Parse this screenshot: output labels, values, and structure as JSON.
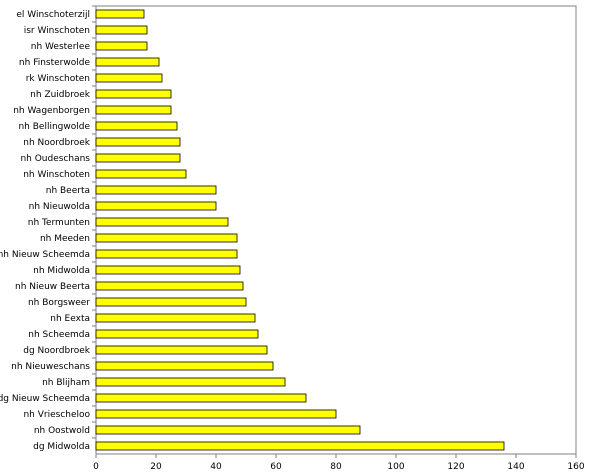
{
  "chart_data": {
    "type": "bar",
    "orientation": "horizontal",
    "categories": [
      "el Winschoterzijl",
      "isr Winschoten",
      "nh Westerlee",
      "nh Finsterwolde",
      "rk Winschoten",
      "nh Zuidbroek",
      "nh Wagenborgen",
      "nh Bellingwolde",
      "nh Noordbroek",
      "nh Oudeschans",
      "nh Winschoten",
      "nh Beerta",
      "nh Nieuwolda",
      "nh Termunten",
      "nh Meeden",
      "nh Nieuw Scheemda",
      "nh Midwolda",
      "nh Nieuw Beerta",
      "nh Borgsweer",
      "nh Eexta",
      "nh Scheemda",
      "dg Noordbroek",
      "nh Nieuweschans",
      "nh Blijham",
      "dg Nieuw Scheemda",
      "nh Vriescheloo",
      "nh Oostwold",
      "dg Midwolda"
    ],
    "values": [
      16,
      17,
      17,
      21,
      22,
      25,
      25,
      27,
      28,
      28,
      30,
      40,
      40,
      44,
      47,
      47,
      48,
      49,
      50,
      53,
      54,
      57,
      59,
      63,
      70,
      80,
      88,
      136
    ],
    "title": "",
    "xlabel": "",
    "ylabel": "",
    "xlim": [
      0,
      160
    ],
    "xticks": [
      0,
      20,
      40,
      60,
      80,
      100,
      120,
      140,
      160
    ],
    "grid": false,
    "legend": "none",
    "colors": {
      "bar_fill": "#ffff00",
      "bar_stroke": "#000000",
      "axis": "#808080"
    }
  }
}
